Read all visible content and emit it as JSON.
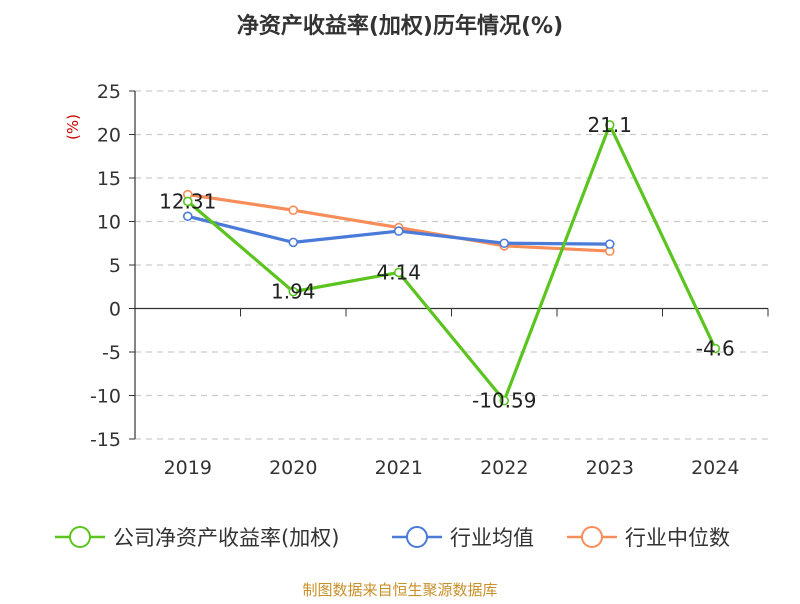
{
  "chart_data": {
    "type": "line",
    "title": "净资产收益率(加权)历年情况(%)",
    "ylabel": "(%)",
    "xlabel": "",
    "categories": [
      "2019",
      "2020",
      "2021",
      "2022",
      "2023",
      "2024"
    ],
    "ylim": [
      -15,
      25
    ],
    "yticks": [
      -15,
      -10,
      -5,
      0,
      5,
      10,
      15,
      20,
      25
    ],
    "grid": true,
    "legend_position": "bottom",
    "series": [
      {
        "name": "公司净资产收益率(加权)",
        "color": "#5bc41f",
        "values": [
          12.31,
          1.94,
          4.14,
          -10.59,
          21.1,
          -4.6
        ],
        "labels": [
          "12.31",
          "1.94",
          "4.14",
          "-10.59",
          "21.1",
          "-4.6"
        ]
      },
      {
        "name": "行业均值",
        "color": "#4b7bd8",
        "values": [
          10.6,
          7.6,
          8.9,
          7.5,
          7.4,
          null
        ]
      },
      {
        "name": "行业中位数",
        "color": "#f78d58",
        "values": [
          13.1,
          11.3,
          9.3,
          7.2,
          6.6,
          null
        ]
      }
    ]
  },
  "footer": {
    "source": "制图数据来自恒生聚源数据库"
  },
  "colors": {
    "title": "#333333",
    "axis_text": "#333333",
    "ylabel": "#cc0000",
    "source": "#c8902a",
    "grid": "#cccccc"
  }
}
